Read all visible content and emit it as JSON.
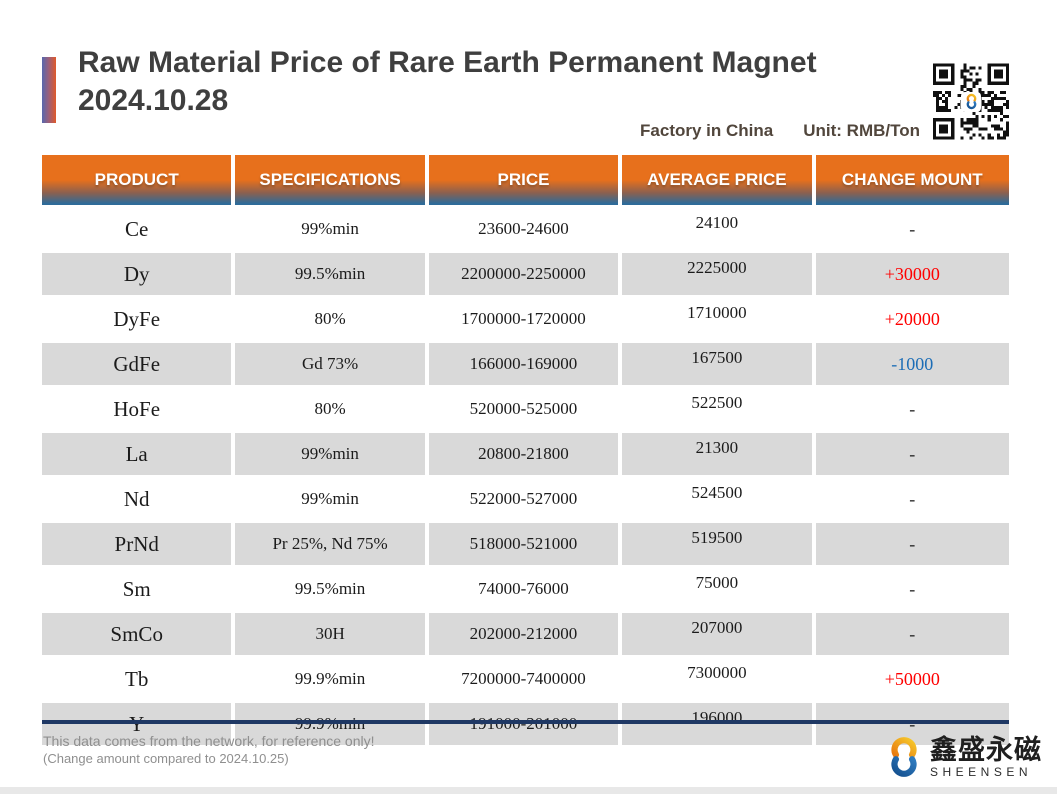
{
  "header": {
    "title_line1": "Raw Material Price of Rare Earth Permanent Magnet",
    "title_line2": "2024.10.28",
    "factory": "Factory in China",
    "unit": "Unit: RMB/Ton"
  },
  "table": {
    "columns": [
      "PRODUCT",
      "SPECIFICATIONS",
      "PRICE",
      "AVERAGE PRICE",
      "CHANGE MOUNT"
    ],
    "rows": [
      {
        "product": "Ce",
        "spec": "99%min",
        "price": "23600-24600",
        "avg": "24100",
        "change": "-",
        "change_type": "none"
      },
      {
        "product": "Dy",
        "spec": "99.5%min",
        "price": "2200000-2250000",
        "avg": "2225000",
        "change": "+30000",
        "change_type": "up"
      },
      {
        "product": "DyFe",
        "spec": "80%",
        "price": "1700000-1720000",
        "avg": "1710000",
        "change": "+20000",
        "change_type": "up"
      },
      {
        "product": "GdFe",
        "spec": "Gd 73%",
        "price": "166000-169000",
        "avg": "167500",
        "change": "-1000",
        "change_type": "down"
      },
      {
        "product": "HoFe",
        "spec": "80%",
        "price": "520000-525000",
        "avg": "522500",
        "change": "-",
        "change_type": "none"
      },
      {
        "product": "La",
        "spec": "99%min",
        "price": "20800-21800",
        "avg": "21300",
        "change": "-",
        "change_type": "none"
      },
      {
        "product": "Nd",
        "spec": "99%min",
        "price": "522000-527000",
        "avg": "524500",
        "change": "-",
        "change_type": "none"
      },
      {
        "product": "PrNd",
        "spec": "Pr 25%, Nd 75%",
        "price": "518000-521000",
        "avg": "519500",
        "change": "-",
        "change_type": "none"
      },
      {
        "product": "Sm",
        "spec": "99.5%min",
        "price": "74000-76000",
        "avg": "75000",
        "change": "-",
        "change_type": "none"
      },
      {
        "product": "SmCo",
        "spec": "30H",
        "price": "202000-212000",
        "avg": "207000",
        "change": "-",
        "change_type": "none"
      },
      {
        "product": "Tb",
        "spec": "99.9%min",
        "price": "7200000-7400000",
        "avg": "7300000",
        "change": "+50000",
        "change_type": "up"
      },
      {
        "product": "Y",
        "spec": "99.9%min",
        "price": "191000-201000",
        "avg": "196000",
        "change": "-",
        "change_type": "none"
      }
    ]
  },
  "footer": {
    "note1": "This data comes from the network, for reference only!",
    "note2": "(Change amount compared to 2024.10.25)",
    "brand_cn": "鑫盛永磁",
    "brand_en": "SHEENSEN"
  },
  "colors": {
    "header_orange": "#E7701C",
    "header_blue": "#2E6B99",
    "row_gray": "#D9D9D9",
    "change_up_red": "#FF0000",
    "change_down_blue": "#1C6DB6",
    "table_bottom_navy": "#1F3864",
    "title_gray": "#3F3F3F",
    "accent_bar_left_blue": "#5868AE",
    "accent_bar_right_orange": "#E05A2B",
    "brand_orange": "#F0A31A",
    "brand_blue": "#1A5FA8"
  }
}
